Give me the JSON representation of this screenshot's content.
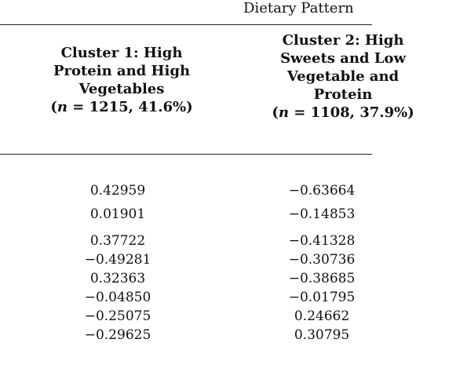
{
  "header": {
    "group_title": "Dietary Pattern"
  },
  "columns": [
    {
      "title_lines": [
        "Cluster 1: High",
        "Protein and High",
        "Vegetables"
      ],
      "n_label": "n",
      "n_value": " = 1215, 41.6%)",
      "n_prefix": "("
    },
    {
      "title_lines": [
        "Cluster 2: High",
        "Sweets and Low",
        "Vegetable and",
        "Protein"
      ],
      "n_label": "n",
      "n_value": " = 1108, 37.9%)",
      "n_prefix": "("
    }
  ],
  "rows": [
    {
      "c1": "0.42959",
      "c2": "−0.63664"
    },
    {
      "c1": "0.01901",
      "c2": "−0.14853"
    },
    {
      "c1": "0.37722",
      "c2": "−0.41328"
    },
    {
      "c1": "−0.49281",
      "c2": "−0.30736"
    },
    {
      "c1": "0.32363",
      "c2": "−0.38685"
    },
    {
      "c1": "−0.04850",
      "c2": "−0.01795"
    },
    {
      "c1": "−0.25075",
      "c2": "0.24662"
    },
    {
      "c1": "−0.29625",
      "c2": "0.30795"
    }
  ]
}
